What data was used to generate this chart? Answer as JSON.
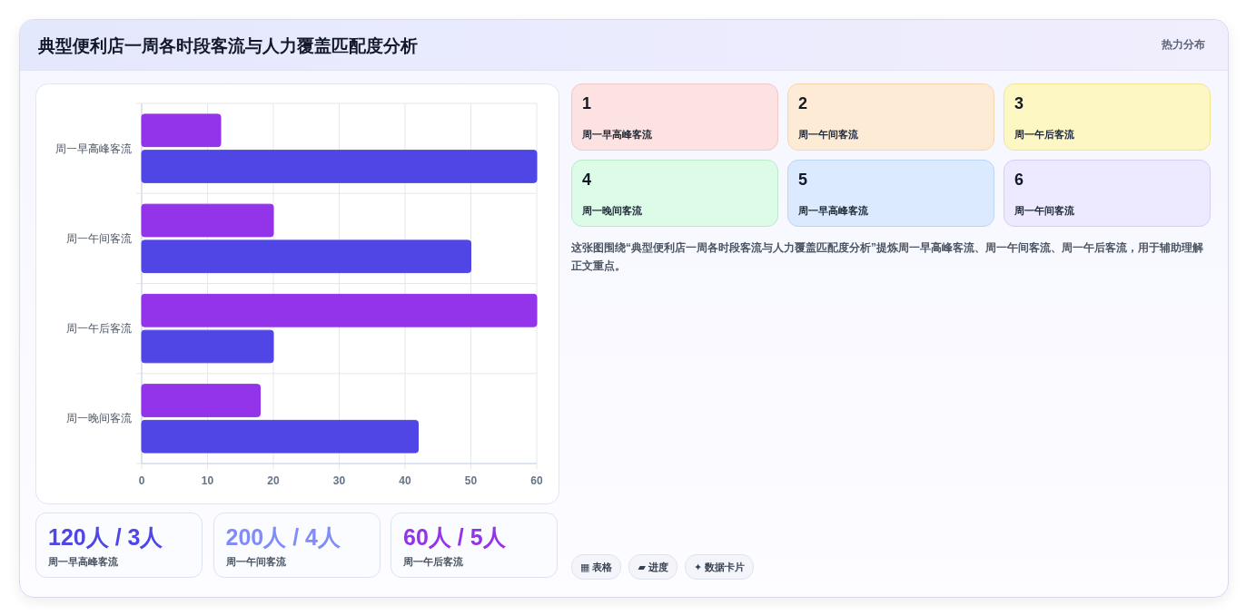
{
  "chart_data": [
    {
      "type": "bar",
      "title": "典型便利店一周各时段客流与人力覆盖匹配度分析",
      "orientation": "horizontal",
      "categories": [
        "周一早高峰客流",
        "周一午间客流",
        "周一午后客流",
        "周一晚间客流"
      ],
      "series": [
        {
          "color": "#9333ea",
          "values": [
            12,
            20,
            60,
            18
          ]
        },
        {
          "color": "#4f46e5",
          "values": [
            60,
            50,
            20,
            42
          ]
        }
      ],
      "xlim": [
        0,
        60
      ],
      "xticks": [
        0,
        10,
        20,
        30,
        40,
        50,
        60
      ],
      "grid": true
    },
    {
      "type": "other",
      "annotations": [
        "1",
        "周一早高峰客流",
        "2",
        "周一午间客流",
        "3",
        "周一午后客流",
        "4",
        "周一晚间客流",
        "5",
        "周一早高峰客流",
        "6",
        "周一午间客流",
        "这张图围绕“典型便利店一周各时段客流与人力覆盖匹配度分析”提炼周一早高峰客流、周一午间客流、周一午后客流，用于辅助理解正文重点。",
        "120人 / 3人",
        "周一早高峰客流",
        "200人 / 4人",
        "周一午间客流",
        "60人 / 5人",
        "周一午后客流",
        "▦ 表格",
        "▰ 进度",
        "✦ 数据卡片",
        "热力分布"
      ]
    }
  ]
}
